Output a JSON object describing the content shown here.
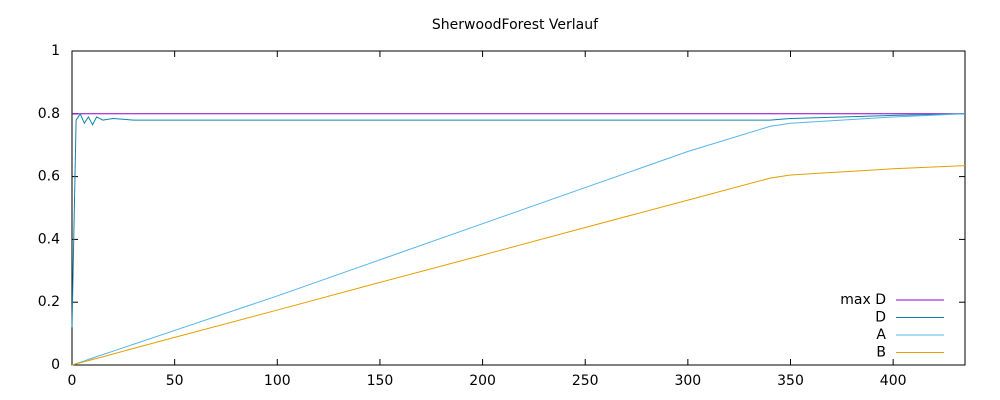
{
  "chart_data": {
    "type": "line",
    "title": "SherwoodForest Verlauf",
    "x": [
      0,
      2,
      4,
      6,
      8,
      10,
      12,
      15,
      20,
      30,
      50,
      100,
      150,
      200,
      250,
      300,
      340,
      350,
      375,
      400,
      435
    ],
    "series": [
      {
        "name": "max D",
        "color": "#9400d3",
        "values": [
          0.8,
          0.8,
          0.8,
          0.8,
          0.8,
          0.8,
          0.8,
          0.8,
          0.8,
          0.8,
          0.8,
          0.8,
          0.8,
          0.8,
          0.8,
          0.8,
          0.8,
          0.8,
          0.8,
          0.8,
          0.8
        ]
      },
      {
        "name": "D",
        "color": "#0f86a8",
        "values": [
          0.12,
          0.78,
          0.8,
          0.77,
          0.79,
          0.765,
          0.79,
          0.78,
          0.785,
          0.78,
          0.78,
          0.78,
          0.78,
          0.78,
          0.78,
          0.78,
          0.78,
          0.785,
          0.79,
          0.795,
          0.8
        ]
      },
      {
        "name": "A",
        "color": "#56b4e9",
        "values": [
          0,
          0.004,
          0.009,
          0.013,
          0.018,
          0.022,
          0.027,
          0.033,
          0.044,
          0.066,
          0.11,
          0.22,
          0.335,
          0.45,
          0.565,
          0.68,
          0.76,
          0.77,
          0.78,
          0.79,
          0.8
        ]
      },
      {
        "name": "B",
        "color": "#e69f00",
        "values": [
          0,
          0.0035,
          0.007,
          0.0105,
          0.014,
          0.0175,
          0.021,
          0.026,
          0.035,
          0.053,
          0.088,
          0.175,
          0.263,
          0.35,
          0.438,
          0.525,
          0.595,
          0.605,
          0.615,
          0.625,
          0.635
        ]
      }
    ],
    "xlim": [
      0,
      435
    ],
    "xticks": [
      0,
      50,
      100,
      150,
      200,
      250,
      300,
      350,
      400
    ],
    "ylim": [
      0,
      1
    ],
    "yticks": [
      0,
      0.2,
      0.4,
      0.6,
      0.8,
      1
    ],
    "grid": false,
    "legend": "bottom-right"
  }
}
